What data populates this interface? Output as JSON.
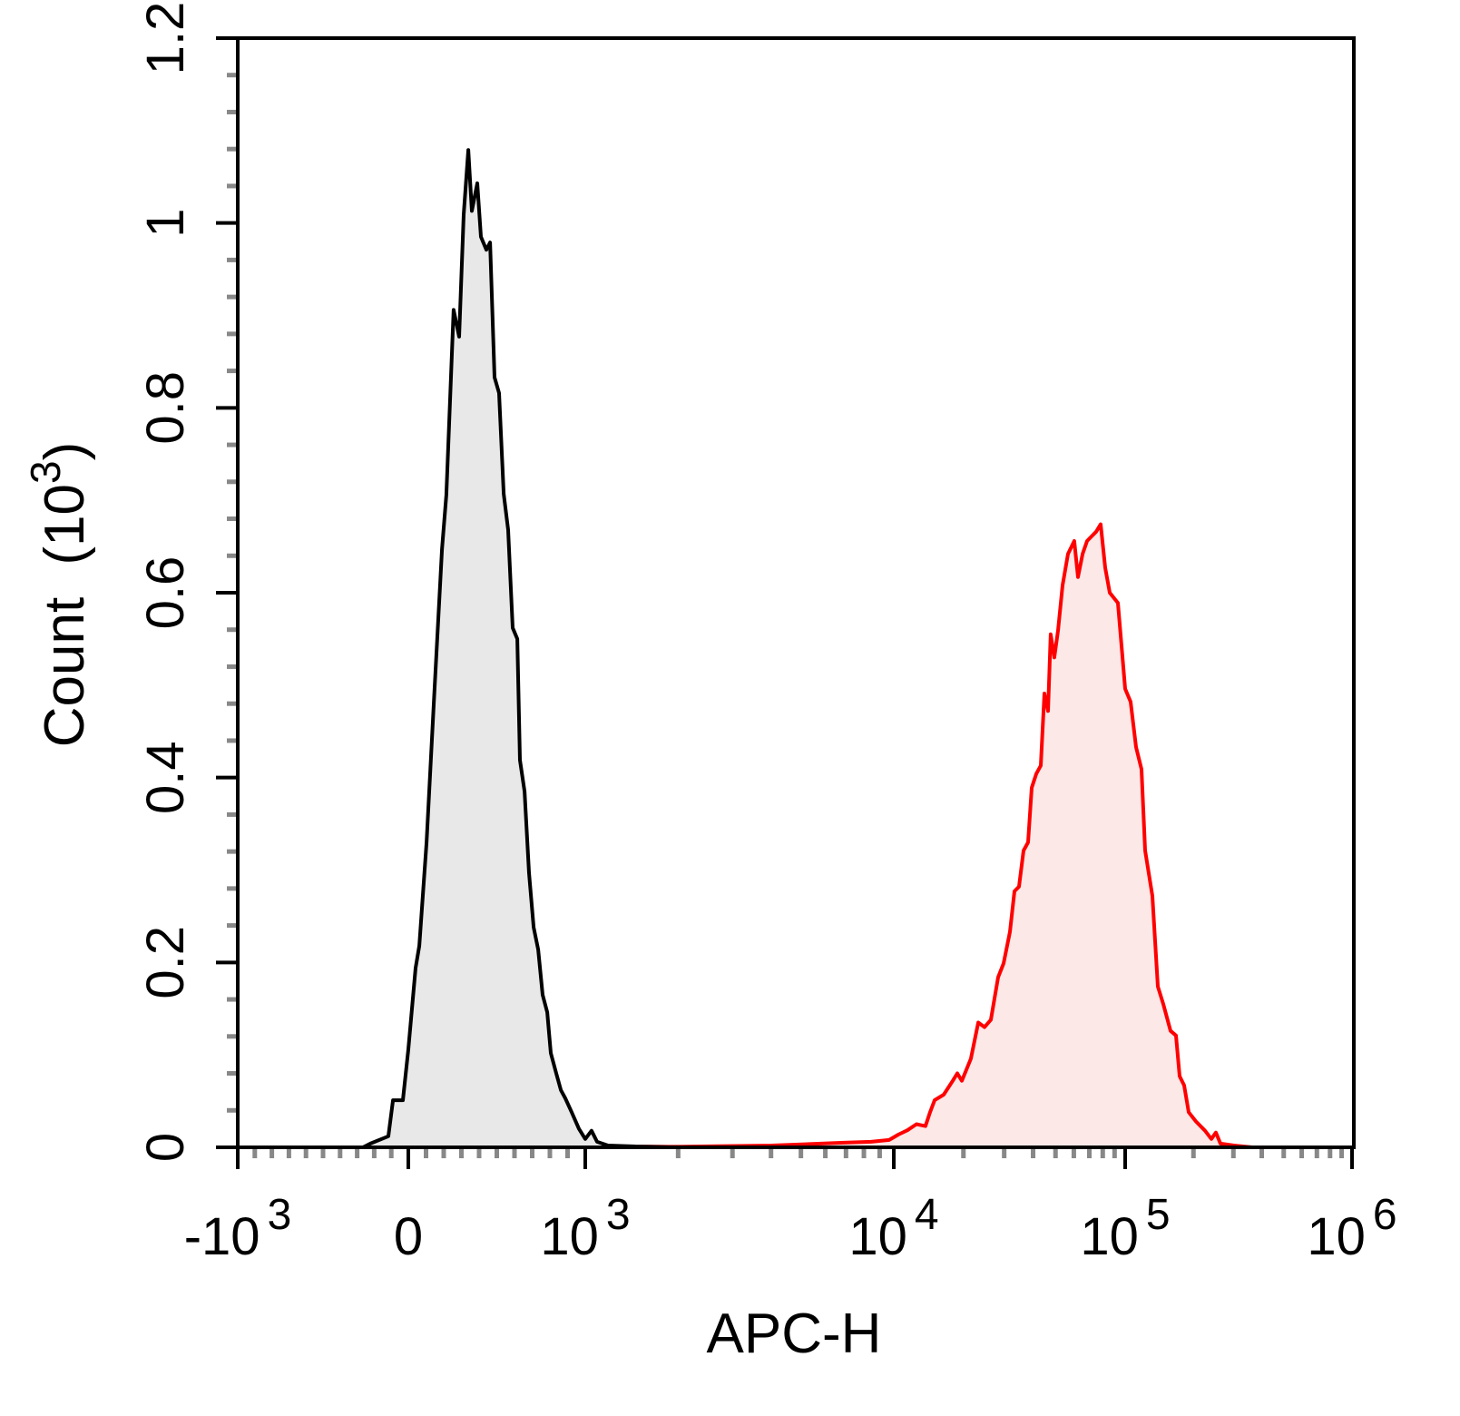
{
  "chart_data": {
    "type": "area",
    "title": "",
    "xlabel": "APC-H",
    "ylabel": "Count (10^3)",
    "ylabel_parts": {
      "main": "Count",
      "open": "(10",
      "exp": "3",
      "close": ")"
    },
    "x_scale": "biexponential",
    "xlim": [
      -1000,
      1000000
    ],
    "ylim": [
      0,
      1.2
    ],
    "grid": false,
    "x_ticks": [
      {
        "value": -1000,
        "base": "-10",
        "exp": "3"
      },
      {
        "value": 0,
        "base": "0",
        "exp": ""
      },
      {
        "value": 1000,
        "base": "10",
        "exp": "3"
      },
      {
        "value": 10000,
        "base": "10",
        "exp": "4"
      },
      {
        "value": 100000,
        "base": "10",
        "exp": "5"
      },
      {
        "value": 1000000,
        "base": "10",
        "exp": "6"
      }
    ],
    "y_ticks": [
      {
        "value": 0,
        "label": "0"
      },
      {
        "value": 0.2,
        "label": "0.2"
      },
      {
        "value": 0.4,
        "label": "0.4"
      },
      {
        "value": 0.6,
        "label": "0.6"
      },
      {
        "value": 0.8,
        "label": "0.8"
      },
      {
        "value": 1.0,
        "label": "1"
      },
      {
        "value": 1.2,
        "label": "1.2"
      }
    ],
    "series": [
      {
        "color": "#000000",
        "fill": "#e8e8e8",
        "x": [
          -1000,
          -266,
          -223,
          -117,
          -90,
          -32,
          0,
          41,
          62,
          103,
          144,
          190,
          215,
          256,
          287,
          313,
          339,
          359,
          390,
          410,
          441,
          462,
          487,
          513,
          539,
          564,
          590,
          616,
          631,
          657,
          682,
          708,
          734,
          759,
          785,
          805,
          836,
          862,
          887,
          923,
          964,
          1000,
          1048,
          1092,
          1185,
          1452,
          2860
        ],
        "y": [
          0,
          0,
          0.004,
          0.012,
          0.051,
          0.051,
          0.106,
          0.194,
          0.218,
          0.33,
          0.481,
          0.647,
          0.706,
          0.906,
          0.877,
          1.009,
          1.079,
          1.013,
          1.043,
          0.985,
          0.971,
          0.979,
          0.833,
          0.816,
          0.707,
          0.668,
          0.562,
          0.55,
          0.419,
          0.385,
          0.297,
          0.238,
          0.214,
          0.165,
          0.146,
          0.102,
          0.08,
          0.062,
          0.053,
          0.038,
          0.02,
          0.009,
          0.018,
          0.006,
          0.002,
          0.001,
          0
        ]
      },
      {
        "color": "#ff0000",
        "fill": "#fde8e8",
        "x": [
          1452,
          4010,
          6890,
          8440,
          9660,
          10460,
          11450,
          12530,
          13710,
          14350,
          15010,
          16430,
          17990,
          18820,
          19690,
          21540,
          23170,
          24660,
          26280,
          28250,
          29820,
          31770,
          33230,
          34760,
          36370,
          38050,
          39450,
          41290,
          43190,
          44770,
          46420,
          47660,
          49420,
          51280,
          53620,
          56610,
          60260,
          62510,
          65460,
          68420,
          71620,
          74910,
          78340,
          82000,
          85750,
          93020,
          100000,
          105700,
          111700,
          118000,
          122500,
          131800,
          139300,
          147200,
          158500,
          167500,
          173800,
          182000,
          190500,
          205100,
          224900,
          239900,
          251200,
          263000,
          302000,
          363100
        ],
        "y": [
          0,
          0.002,
          0.005,
          0.006,
          0.008,
          0.0137,
          0.0185,
          0.025,
          0.023,
          0.038,
          0.051,
          0.057,
          0.072,
          0.08,
          0.072,
          0.096,
          0.135,
          0.13,
          0.138,
          0.184,
          0.199,
          0.233,
          0.277,
          0.282,
          0.321,
          0.33,
          0.389,
          0.404,
          0.413,
          0.491,
          0.472,
          0.555,
          0.53,
          0.559,
          0.608,
          0.642,
          0.656,
          0.617,
          0.642,
          0.656,
          0.661,
          0.666,
          0.674,
          0.627,
          0.6,
          0.589,
          0.496,
          0.482,
          0.433,
          0.409,
          0.321,
          0.272,
          0.174,
          0.155,
          0.126,
          0.121,
          0.077,
          0.067,
          0.038,
          0.028,
          0.018,
          0.009,
          0.016,
          0.004,
          0.002,
          0
        ]
      }
    ]
  }
}
